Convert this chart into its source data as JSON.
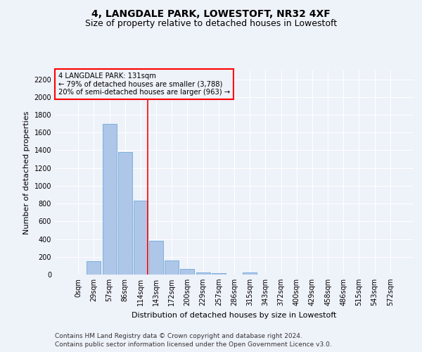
{
  "title": "4, LANGDALE PARK, LOWESTOFT, NR32 4XF",
  "subtitle": "Size of property relative to detached houses in Lowestoft",
  "xlabel": "Distribution of detached houses by size in Lowestoft",
  "ylabel": "Number of detached properties",
  "bar_labels": [
    "0sqm",
    "29sqm",
    "57sqm",
    "86sqm",
    "114sqm",
    "143sqm",
    "172sqm",
    "200sqm",
    "229sqm",
    "257sqm",
    "286sqm",
    "315sqm",
    "343sqm",
    "372sqm",
    "400sqm",
    "429sqm",
    "458sqm",
    "486sqm",
    "515sqm",
    "543sqm",
    "572sqm"
  ],
  "bar_values": [
    0,
    150,
    1700,
    1380,
    830,
    380,
    160,
    65,
    25,
    18,
    0,
    25,
    0,
    0,
    0,
    0,
    0,
    0,
    0,
    0,
    0
  ],
  "bar_color": "#aec6e8",
  "bar_edge_color": "#5a9fd4",
  "ylim": [
    0,
    2300
  ],
  "yticks": [
    0,
    200,
    400,
    600,
    800,
    1000,
    1200,
    1400,
    1600,
    1800,
    2000,
    2200
  ],
  "property_size": 131,
  "property_bin_index": 4,
  "annotation_title": "4 LANGDALE PARK: 131sqm",
  "annotation_line1": "← 79% of detached houses are smaller (3,788)",
  "annotation_line2": "20% of semi-detached houses are larger (963) →",
  "footnote1": "Contains HM Land Registry data © Crown copyright and database right 2024.",
  "footnote2": "Contains public sector information licensed under the Open Government Licence v3.0.",
  "bg_color": "#eef2f9",
  "grid_color": "#ffffff",
  "title_fontsize": 10,
  "subtitle_fontsize": 9,
  "axis_label_fontsize": 8,
  "tick_fontsize": 7,
  "footnote_fontsize": 6.5
}
